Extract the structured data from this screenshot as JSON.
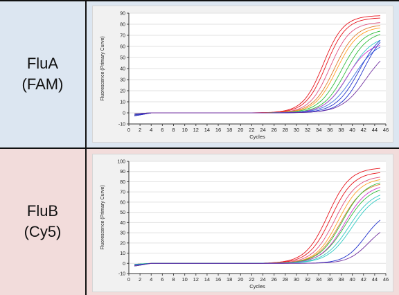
{
  "rows": [
    {
      "line1": "FluA",
      "line2": "(FAM)",
      "bg": "#dce6f1"
    },
    {
      "line1": "FluB",
      "line2": "(Cy5)",
      "bg": "#f2dcdb"
    }
  ],
  "chart_data": [
    {
      "type": "line",
      "xlabel": "Cycles",
      "ylabel": "Fluorescence (Primary Curve)",
      "xlim": [
        0,
        46
      ],
      "ylim": [
        -10,
        90
      ],
      "xticks": [
        0,
        2,
        4,
        6,
        8,
        10,
        12,
        14,
        16,
        18,
        20,
        22,
        24,
        26,
        28,
        30,
        32,
        34,
        36,
        38,
        40,
        42,
        44,
        46
      ],
      "yticks": [
        -10,
        0,
        10,
        20,
        30,
        40,
        50,
        60,
        70,
        80,
        90
      ],
      "grid": "horizontal",
      "series": [
        {
          "color": "#e8141c",
          "midpoint": 34.8,
          "plateau": 88,
          "slope": 0.55
        },
        {
          "color": "#e8141c",
          "midpoint": 35.3,
          "plateau": 86,
          "slope": 0.55
        },
        {
          "color": "#e0507e",
          "midpoint": 36.0,
          "plateau": 82,
          "slope": 0.55
        },
        {
          "color": "#e07a2a",
          "midpoint": 36.8,
          "plateau": 80,
          "slope": 0.52
        },
        {
          "color": "#ffa020",
          "midpoint": 37.2,
          "plateau": 78,
          "slope": 0.52
        },
        {
          "color": "#2ebd3a",
          "midpoint": 38.0,
          "plateau": 76,
          "slope": 0.5
        },
        {
          "color": "#2ebd3a",
          "midpoint": 38.8,
          "plateau": 74,
          "slope": 0.5
        },
        {
          "color": "#2fc9c2",
          "midpoint": 39.4,
          "plateau": 70,
          "slope": 0.48
        },
        {
          "color": "#cc33cc",
          "midpoint": 39.0,
          "plateau": 64,
          "slope": 0.5
        },
        {
          "color": "#3a6fe0",
          "midpoint": 40.2,
          "plateau": 66,
          "slope": 0.46
        },
        {
          "color": "#1e2fcc",
          "midpoint": 41.2,
          "plateau": 76,
          "slope": 0.48
        },
        {
          "color": "#1e2fcc",
          "midpoint": 42.0,
          "plateau": 78,
          "slope": 0.5
        },
        {
          "color": "#7030a0",
          "midpoint": 42.5,
          "plateau": 62,
          "slope": 0.45
        }
      ]
    },
    {
      "type": "line",
      "xlabel": "Cycles",
      "ylabel": "Fluorescence (Primary Curve)",
      "xlim": [
        0,
        46
      ],
      "ylim": [
        -10,
        100
      ],
      "xticks": [
        0,
        2,
        4,
        6,
        8,
        10,
        12,
        14,
        16,
        18,
        20,
        22,
        24,
        26,
        28,
        30,
        32,
        34,
        36,
        38,
        40,
        42,
        44,
        46
      ],
      "yticks": [
        -10,
        0,
        10,
        20,
        30,
        40,
        50,
        60,
        70,
        80,
        90,
        100
      ],
      "grid": "horizontal",
      "series": [
        {
          "color": "#e8141c",
          "midpoint": 35.6,
          "plateau": 94,
          "slope": 0.5
        },
        {
          "color": "#e8141c",
          "midpoint": 36.2,
          "plateau": 90,
          "slope": 0.5
        },
        {
          "color": "#e0507e",
          "midpoint": 36.9,
          "plateau": 86,
          "slope": 0.5
        },
        {
          "color": "#ffa020",
          "midpoint": 37.5,
          "plateau": 84,
          "slope": 0.5
        },
        {
          "color": "#e07a2a",
          "midpoint": 37.9,
          "plateau": 80,
          "slope": 0.48
        },
        {
          "color": "#2ebd3a",
          "midpoint": 38.2,
          "plateau": 82,
          "slope": 0.48
        },
        {
          "color": "#2ebd3a",
          "midpoint": 38.8,
          "plateau": 76,
          "slope": 0.46
        },
        {
          "color": "#cc33cc",
          "midpoint": 38.6,
          "plateau": 78,
          "slope": 0.48
        },
        {
          "color": "#2fc9c2",
          "midpoint": 39.4,
          "plateau": 72,
          "slope": 0.46
        },
        {
          "color": "#2fc9c2",
          "midpoint": 39.9,
          "plateau": 70,
          "slope": 0.46
        },
        {
          "color": "#1e2fcc",
          "midpoint": 42.3,
          "plateau": 52,
          "slope": 0.55
        },
        {
          "color": "#7030a0",
          "midpoint": 42.9,
          "plateau": 40,
          "slope": 0.55
        }
      ]
    }
  ]
}
